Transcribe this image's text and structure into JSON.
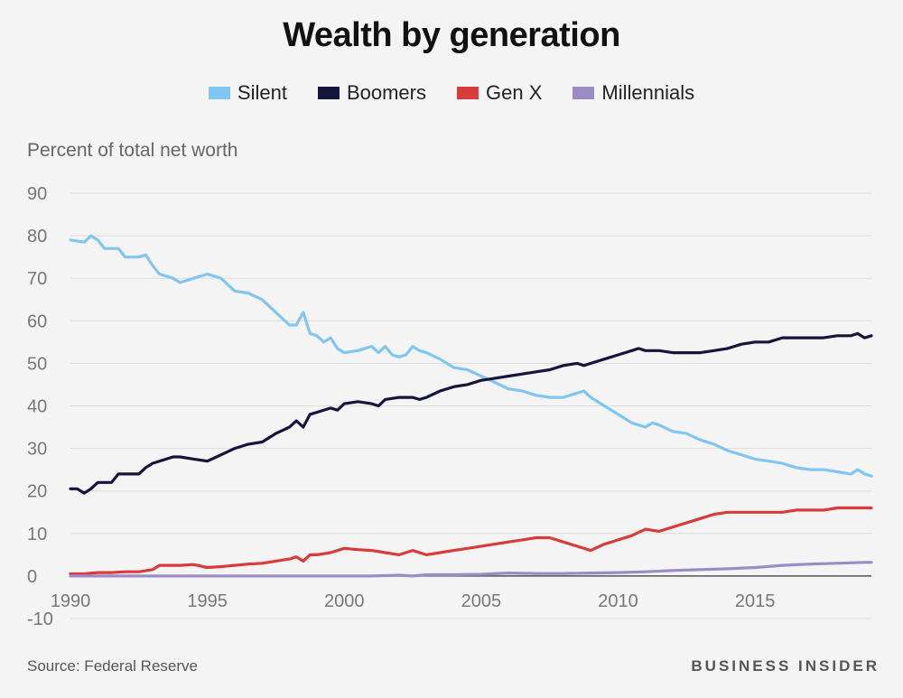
{
  "chart_data": {
    "type": "line",
    "title": "Wealth by generation",
    "ylabel": "Percent of total net worth",
    "xlabel": "",
    "xlim": [
      1990,
      2019.25
    ],
    "ylim": [
      -10,
      90
    ],
    "xticks": [
      1990,
      1995,
      2000,
      2005,
      2010,
      2015
    ],
    "yticks": [
      -10,
      0,
      10,
      20,
      30,
      40,
      50,
      60,
      70,
      80,
      90
    ],
    "grid": true,
    "legend_position": "top-center",
    "series": [
      {
        "name": "Silent",
        "color": "#7fc6f2",
        "points": [
          [
            1990,
            79
          ],
          [
            1990.5,
            78.5
          ],
          [
            1990.75,
            80
          ],
          [
            1991,
            79
          ],
          [
            1991.25,
            77
          ],
          [
            1991.75,
            77
          ],
          [
            1992,
            75
          ],
          [
            1992.5,
            75
          ],
          [
            1992.75,
            75.5
          ],
          [
            1993,
            73
          ],
          [
            1993.25,
            71
          ],
          [
            1993.75,
            70
          ],
          [
            1994,
            69
          ],
          [
            1994.5,
            70
          ],
          [
            1995,
            71
          ],
          [
            1995.5,
            70
          ],
          [
            1996,
            67
          ],
          [
            1996.5,
            66.5
          ],
          [
            1997,
            65
          ],
          [
            1997.5,
            62
          ],
          [
            1998,
            59
          ],
          [
            1998.25,
            59
          ],
          [
            1998.5,
            62
          ],
          [
            1998.75,
            57
          ],
          [
            1999,
            56.5
          ],
          [
            1999.25,
            55
          ],
          [
            1999.5,
            56
          ],
          [
            1999.75,
            53.5
          ],
          [
            2000,
            52.5
          ],
          [
            2000.5,
            53
          ],
          [
            2001,
            54
          ],
          [
            2001.25,
            52.5
          ],
          [
            2001.5,
            54
          ],
          [
            2001.75,
            52
          ],
          [
            2002,
            51.5
          ],
          [
            2002.25,
            52
          ],
          [
            2002.5,
            54
          ],
          [
            2002.75,
            53
          ],
          [
            2003,
            52.5
          ],
          [
            2003.5,
            51
          ],
          [
            2004,
            49
          ],
          [
            2004.5,
            48.5
          ],
          [
            2005,
            47
          ],
          [
            2005.5,
            45.5
          ],
          [
            2006,
            44
          ],
          [
            2006.5,
            43.5
          ],
          [
            2007,
            42.5
          ],
          [
            2007.5,
            42
          ],
          [
            2008,
            42
          ],
          [
            2008.5,
            43
          ],
          [
            2008.75,
            43.5
          ],
          [
            2009,
            42
          ],
          [
            2009.5,
            40
          ],
          [
            2010,
            38
          ],
          [
            2010.5,
            36
          ],
          [
            2011,
            35
          ],
          [
            2011.25,
            36
          ],
          [
            2011.5,
            35.5
          ],
          [
            2012,
            34
          ],
          [
            2012.5,
            33.5
          ],
          [
            2013,
            32
          ],
          [
            2013.5,
            31
          ],
          [
            2014,
            29.5
          ],
          [
            2014.5,
            28.5
          ],
          [
            2015,
            27.5
          ],
          [
            2015.5,
            27
          ],
          [
            2016,
            26.5
          ],
          [
            2016.5,
            25.5
          ],
          [
            2017,
            25
          ],
          [
            2017.5,
            25
          ],
          [
            2018,
            24.5
          ],
          [
            2018.5,
            24
          ],
          [
            2018.75,
            25
          ],
          [
            2019,
            24
          ],
          [
            2019.25,
            23.5
          ]
        ]
      },
      {
        "name": "Boomers",
        "color": "#15143c",
        "points": [
          [
            1990,
            20.5
          ],
          [
            1990.25,
            20.5
          ],
          [
            1990.5,
            19.5
          ],
          [
            1990.75,
            20.5
          ],
          [
            1991,
            22
          ],
          [
            1991.5,
            22
          ],
          [
            1991.75,
            24
          ],
          [
            1992,
            24
          ],
          [
            1992.5,
            24
          ],
          [
            1992.75,
            25.5
          ],
          [
            1993,
            26.5
          ],
          [
            1993.5,
            27.5
          ],
          [
            1993.75,
            28
          ],
          [
            1994,
            28
          ],
          [
            1994.5,
            27.5
          ],
          [
            1995,
            27
          ],
          [
            1995.5,
            28.5
          ],
          [
            1996,
            30
          ],
          [
            1996.5,
            31
          ],
          [
            1997,
            31.5
          ],
          [
            1997.5,
            33.5
          ],
          [
            1998,
            35
          ],
          [
            1998.25,
            36.5
          ],
          [
            1998.5,
            35
          ],
          [
            1998.75,
            38
          ],
          [
            1999,
            38.5
          ],
          [
            1999.5,
            39.5
          ],
          [
            1999.75,
            39
          ],
          [
            2000,
            40.5
          ],
          [
            2000.5,
            41
          ],
          [
            2001,
            40.5
          ],
          [
            2001.25,
            40
          ],
          [
            2001.5,
            41.5
          ],
          [
            2002,
            42
          ],
          [
            2002.5,
            42
          ],
          [
            2002.75,
            41.5
          ],
          [
            2003,
            42
          ],
          [
            2003.5,
            43.5
          ],
          [
            2004,
            44.5
          ],
          [
            2004.5,
            45
          ],
          [
            2005,
            46
          ],
          [
            2005.5,
            46.5
          ],
          [
            2006,
            47
          ],
          [
            2006.5,
            47.5
          ],
          [
            2007,
            48
          ],
          [
            2007.5,
            48.5
          ],
          [
            2008,
            49.5
          ],
          [
            2008.5,
            50
          ],
          [
            2008.75,
            49.5
          ],
          [
            2009,
            50
          ],
          [
            2009.5,
            51
          ],
          [
            2010,
            52
          ],
          [
            2010.5,
            53
          ],
          [
            2010.75,
            53.5
          ],
          [
            2011,
            53
          ],
          [
            2011.5,
            53
          ],
          [
            2012,
            52.5
          ],
          [
            2012.5,
            52.5
          ],
          [
            2013,
            52.5
          ],
          [
            2013.5,
            53
          ],
          [
            2014,
            53.5
          ],
          [
            2014.5,
            54.5
          ],
          [
            2015,
            55
          ],
          [
            2015.5,
            55
          ],
          [
            2016,
            56
          ],
          [
            2016.5,
            56
          ],
          [
            2017,
            56
          ],
          [
            2017.5,
            56
          ],
          [
            2018,
            56.5
          ],
          [
            2018.5,
            56.5
          ],
          [
            2018.75,
            57
          ],
          [
            2019,
            56
          ],
          [
            2019.25,
            56.5
          ]
        ]
      },
      {
        "name": "Gen X",
        "color": "#d93a3a",
        "points": [
          [
            1990,
            0.5
          ],
          [
            1990.5,
            0.5
          ],
          [
            1991,
            0.8
          ],
          [
            1991.5,
            0.8
          ],
          [
            1992,
            1
          ],
          [
            1992.5,
            1
          ],
          [
            1993,
            1.5
          ],
          [
            1993.25,
            2.5
          ],
          [
            1993.5,
            2.5
          ],
          [
            1994,
            2.5
          ],
          [
            1994.5,
            2.7
          ],
          [
            1995,
            2
          ],
          [
            1995.5,
            2.2
          ],
          [
            1996,
            2.5
          ],
          [
            1996.5,
            2.8
          ],
          [
            1997,
            3
          ],
          [
            1997.5,
            3.5
          ],
          [
            1998,
            4
          ],
          [
            1998.25,
            4.5
          ],
          [
            1998.5,
            3.5
          ],
          [
            1998.75,
            5
          ],
          [
            1999,
            5
          ],
          [
            1999.5,
            5.5
          ],
          [
            2000,
            6.5
          ],
          [
            2000.5,
            6.2
          ],
          [
            2001,
            6
          ],
          [
            2001.5,
            5.5
          ],
          [
            2002,
            5
          ],
          [
            2002.5,
            6
          ],
          [
            2003,
            5
          ],
          [
            2003.5,
            5.5
          ],
          [
            2004,
            6
          ],
          [
            2004.5,
            6.5
          ],
          [
            2005,
            7
          ],
          [
            2005.5,
            7.5
          ],
          [
            2006,
            8
          ],
          [
            2006.5,
            8.5
          ],
          [
            2007,
            9
          ],
          [
            2007.5,
            9
          ],
          [
            2008,
            8
          ],
          [
            2008.5,
            7
          ],
          [
            2009,
            6
          ],
          [
            2009.5,
            7.5
          ],
          [
            2010,
            8.5
          ],
          [
            2010.5,
            9.5
          ],
          [
            2011,
            11
          ],
          [
            2011.5,
            10.5
          ],
          [
            2012,
            11.5
          ],
          [
            2012.5,
            12.5
          ],
          [
            2013,
            13.5
          ],
          [
            2013.5,
            14.5
          ],
          [
            2014,
            15
          ],
          [
            2014.5,
            15
          ],
          [
            2015,
            15
          ],
          [
            2015.5,
            15
          ],
          [
            2016,
            15
          ],
          [
            2016.5,
            15.5
          ],
          [
            2017,
            15.5
          ],
          [
            2017.5,
            15.5
          ],
          [
            2018,
            16
          ],
          [
            2018.5,
            16
          ],
          [
            2019,
            16
          ],
          [
            2019.25,
            16
          ]
        ]
      },
      {
        "name": "Millennials",
        "color": "#9b8cc6",
        "points": [
          [
            1990,
            0
          ],
          [
            1992,
            0
          ],
          [
            1994,
            0
          ],
          [
            1996,
            0
          ],
          [
            1998,
            0
          ],
          [
            2000,
            0
          ],
          [
            2001,
            0
          ],
          [
            2002,
            0.2
          ],
          [
            2002.5,
            0
          ],
          [
            2003,
            0.3
          ],
          [
            2004,
            0.3
          ],
          [
            2005,
            0.4
          ],
          [
            2006,
            0.7
          ],
          [
            2007,
            0.6
          ],
          [
            2008,
            0.6
          ],
          [
            2009,
            0.7
          ],
          [
            2010,
            0.8
          ],
          [
            2011,
            1
          ],
          [
            2012,
            1.3
          ],
          [
            2013,
            1.5
          ],
          [
            2014,
            1.7
          ],
          [
            2015,
            2
          ],
          [
            2016,
            2.5
          ],
          [
            2017,
            2.8
          ],
          [
            2018,
            3
          ],
          [
            2019,
            3.2
          ],
          [
            2019.25,
            3.2
          ]
        ]
      }
    ]
  },
  "footer": {
    "source": "Source: Federal Reserve",
    "brand": "BUSINESS INSIDER"
  }
}
